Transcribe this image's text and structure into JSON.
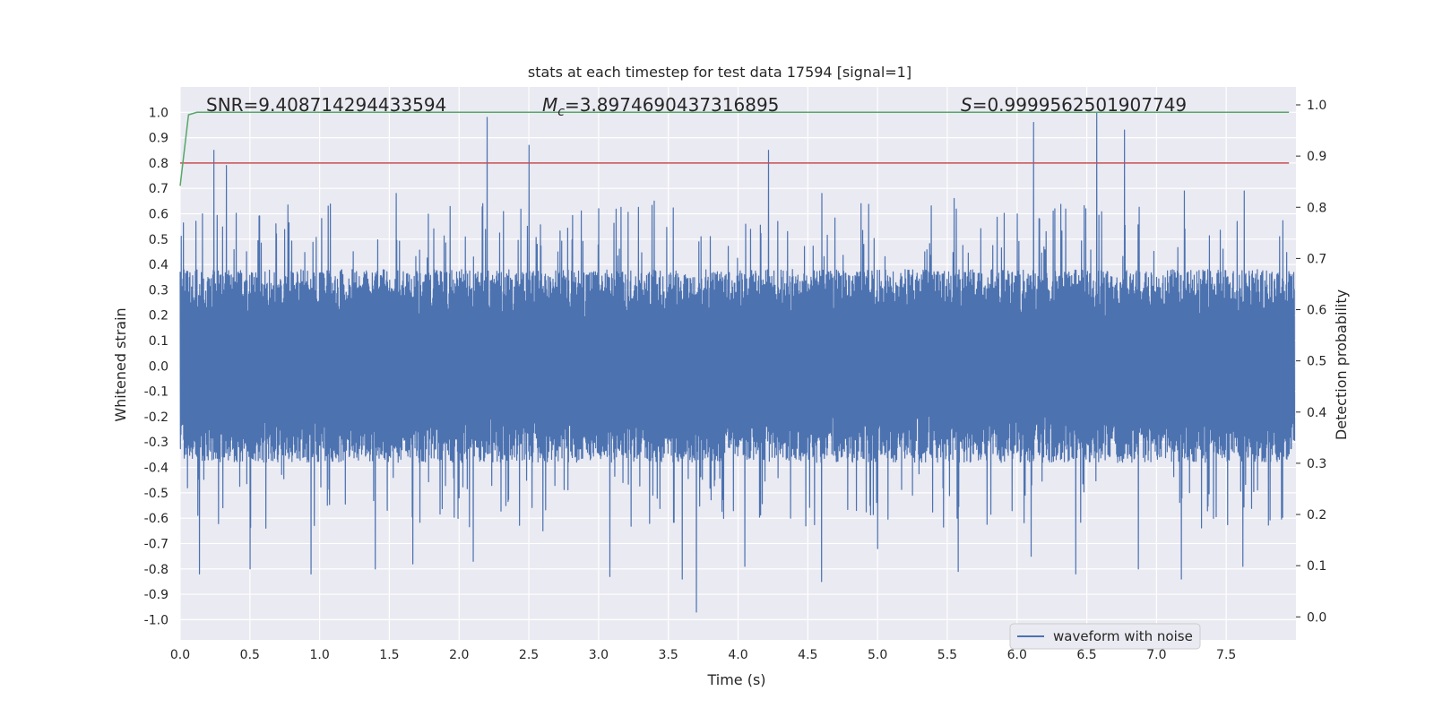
{
  "chart_data": {
    "type": "line",
    "title": "stats at each timestep for test data 17594 [signal=1]",
    "xlabel": "Time (s)",
    "ylabel_left": "Whitened strain",
    "ylabel_right": "Detection probability",
    "xlim": [
      0.0,
      8.0
    ],
    "ylim_left": [
      -1.08,
      1.1
    ],
    "ylim_right": [
      -0.045,
      1.035
    ],
    "x_ticks": [
      "0.0",
      "0.5",
      "1.0",
      "1.5",
      "2.0",
      "2.5",
      "3.0",
      "3.5",
      "4.0",
      "4.5",
      "5.0",
      "5.5",
      "6.0",
      "6.5",
      "7.0",
      "7.5"
    ],
    "y_ticks_left": [
      "1.0",
      "0.9",
      "0.8",
      "0.7",
      "0.6",
      "0.5",
      "0.4",
      "0.3",
      "0.2",
      "0.1",
      "0.0",
      "-0.1",
      "-0.2",
      "-0.3",
      "-0.4",
      "-0.5",
      "-0.6",
      "-0.7",
      "-0.8",
      "-0.9",
      "-1.0"
    ],
    "y_ticks_right": [
      "1.0",
      "0.9",
      "0.8",
      "0.7",
      "0.6",
      "0.5",
      "0.4",
      "0.3",
      "0.2",
      "0.1",
      "0.0"
    ],
    "annotations": {
      "snr": "SNR=9.408714294433594",
      "mc_symbol": "M",
      "mc_sub": "c",
      "mc_value": "=3.8974690437316895",
      "s_symbol": "S",
      "s_value": "=0.9999562501907749"
    },
    "legend": {
      "placement": "lower-right",
      "entries": [
        "waveform with noise"
      ]
    },
    "grid": true,
    "colors": {
      "background": "#eaeaf2",
      "waveform": "#4c72b0",
      "threshold": "#c44e52",
      "probability": "#55a868",
      "grid": "#ffffff"
    },
    "series": [
      {
        "name": "waveform with noise",
        "axis": "left",
        "summary": "dense noise, amplitude mostly within ±0.45, peaks up to ~1.0 and down to ~-0.97",
        "peaks": {
          "x": [
            0.24,
            0.33,
            1.06,
            1.55,
            2.2,
            2.5,
            3.0,
            3.4,
            4.22,
            4.6,
            5.55,
            6.12,
            6.57,
            6.77,
            7.2,
            7.63
          ],
          "y": [
            0.85,
            0.79,
            0.63,
            0.68,
            0.98,
            0.87,
            0.62,
            0.65,
            0.85,
            0.68,
            0.66,
            0.96,
            1.0,
            0.93,
            0.69,
            0.69
          ]
        },
        "troughs": {
          "x": [
            0.14,
            0.5,
            0.94,
            1.4,
            1.67,
            2.1,
            2.6,
            3.08,
            3.6,
            3.7,
            4.05,
            4.6,
            5.0,
            5.58,
            6.1,
            6.42,
            6.87,
            7.18,
            7.62
          ],
          "y": [
            -0.82,
            -0.8,
            -0.82,
            -0.8,
            -0.78,
            -0.77,
            -0.65,
            -0.83,
            -0.84,
            -0.97,
            -0.79,
            -0.85,
            -0.72,
            -0.81,
            -0.75,
            -0.82,
            -0.8,
            -0.84,
            -0.79
          ]
        }
      },
      {
        "name": "",
        "axis": "left",
        "style": "threshold",
        "x": [
          0.0,
          7.95
        ],
        "y": [
          0.8,
          0.8
        ]
      },
      {
        "name": "",
        "axis": "left",
        "style": "probability",
        "x": [
          0.0,
          0.06,
          0.12,
          7.95
        ],
        "y": [
          0.71,
          0.99,
          1.0,
          1.0
        ]
      }
    ]
  }
}
